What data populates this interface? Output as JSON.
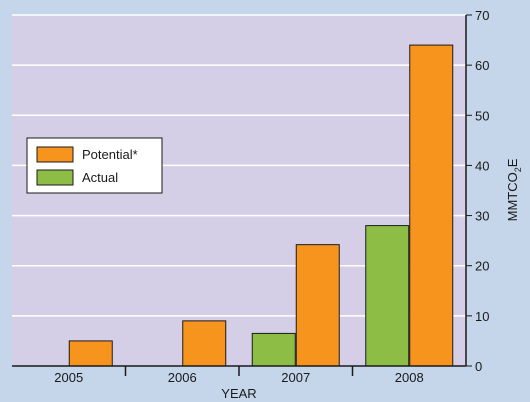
{
  "chart_data": {
    "type": "bar",
    "categories": [
      "2005",
      "2006",
      "2007",
      "2008"
    ],
    "series": [
      {
        "name": "Actual",
        "values": [
          0,
          0,
          6.5,
          28
        ],
        "color": "#8dbd45"
      },
      {
        "name": "Potential*",
        "values": [
          5,
          9,
          24.2,
          64
        ],
        "color": "#f6941d"
      }
    ],
    "xlabel": "YEAR",
    "ylabel": "MMTCO",
    "ylabel_sub": "2",
    "ylabel_suffix": "E",
    "ylim": [
      0,
      70
    ],
    "yticks": [
      0,
      10,
      20,
      30,
      40,
      50,
      60,
      70
    ],
    "y_axis_side": "right",
    "grid": true,
    "legend_placement": "left",
    "plot_background": "#d4cfe7",
    "page_background": "#c5d6ea"
  }
}
